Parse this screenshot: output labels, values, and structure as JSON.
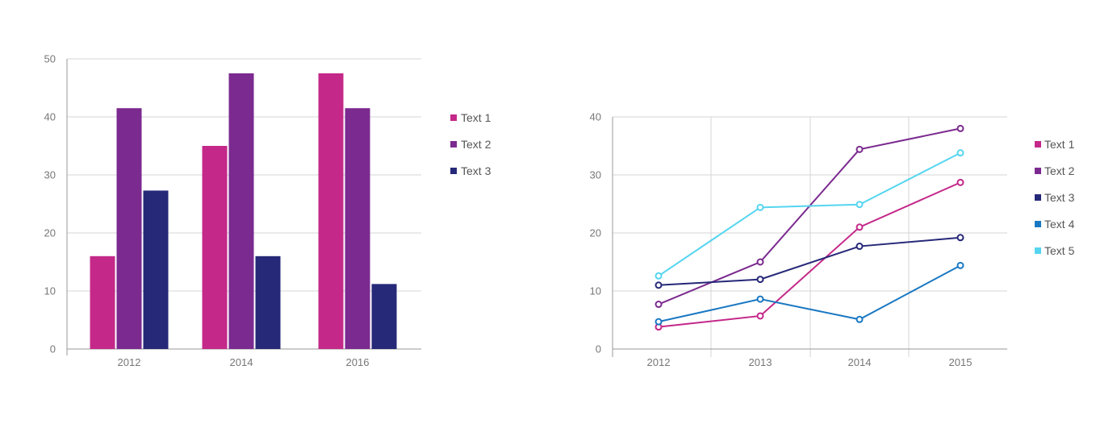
{
  "colors": {
    "text1": "#c42889",
    "text2": "#7b2a8f",
    "text3": "#262878",
    "text4": "#1a78c2",
    "text5": "#55d5f0",
    "grid": "#d4d4d4",
    "axis": "#999999",
    "tick_text": "#777777"
  },
  "chart_data": [
    {
      "type": "bar",
      "categories": [
        "2012",
        "2014",
        "2016"
      ],
      "series": [
        {
          "name": "Text 1",
          "color_key": "text1",
          "values": [
            16,
            35,
            47.5
          ]
        },
        {
          "name": "Text 2",
          "color_key": "text2",
          "values": [
            41.5,
            47.5,
            41.5
          ]
        },
        {
          "name": "Text 3",
          "color_key": "text3",
          "values": [
            27.3,
            16,
            11.2
          ]
        }
      ],
      "yticks": [
        "0",
        "10",
        "20",
        "30",
        "40",
        "50"
      ],
      "ylim": [
        0,
        50
      ],
      "grid": true,
      "legend": "right"
    },
    {
      "type": "line",
      "categories": [
        "2012",
        "2013",
        "2014",
        "2015"
      ],
      "series": [
        {
          "name": "Text 1",
          "color_key": "text1",
          "values": [
            3.8,
            5.7,
            21,
            28.7
          ]
        },
        {
          "name": "Text 2",
          "color_key": "text2",
          "values": [
            7.7,
            15,
            34.4,
            38
          ]
        },
        {
          "name": "Text 3",
          "color_key": "text3",
          "values": [
            11,
            12,
            17.7,
            19.2
          ]
        },
        {
          "name": "Text 4",
          "color_key": "text4",
          "values": [
            4.7,
            8.6,
            5.1,
            14.4
          ]
        },
        {
          "name": "Text 5",
          "color_key": "text5",
          "values": [
            12.6,
            24.4,
            24.9,
            33.8
          ]
        }
      ],
      "yticks": [
        "0",
        "10",
        "20",
        "30",
        "40"
      ],
      "ylim": [
        0,
        40
      ],
      "grid": true,
      "markers": "open-circle",
      "legend": "right"
    }
  ]
}
